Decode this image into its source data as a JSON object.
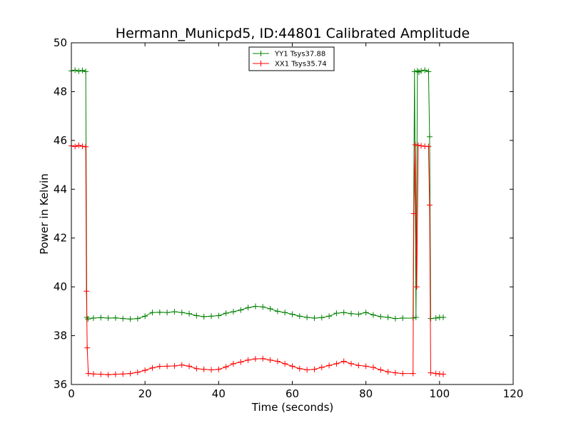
{
  "chart_data": {
    "type": "line",
    "title": "Hermann_Municpd5, ID:44801 Calibrated Amplitude",
    "xlabel": "Time (seconds)",
    "ylabel": "Power in Kelvin",
    "xlim": [
      0,
      120
    ],
    "ylim": [
      36,
      50
    ],
    "xticks": [
      0,
      20,
      40,
      60,
      80,
      100,
      120
    ],
    "yticks": [
      36,
      38,
      40,
      42,
      44,
      46,
      48,
      50
    ],
    "xtick_labels": [
      "0",
      "20",
      "40",
      "60",
      "80",
      "100",
      "120"
    ],
    "ytick_labels": [
      "36",
      "38",
      "40",
      "42",
      "44",
      "46",
      "48",
      "50"
    ],
    "grid": false,
    "legend_position": "top-center",
    "marker": "+",
    "series": [
      {
        "name": "YY1 Tsys37.88",
        "color": "#008000",
        "x": [
          0,
          1,
          2,
          3,
          3.9,
          4.2,
          4.5,
          6,
          8,
          10,
          12,
          14,
          16,
          18,
          20,
          22,
          24,
          26,
          28,
          30,
          32,
          34,
          36,
          38,
          40,
          42,
          44,
          46,
          48,
          50,
          52,
          54,
          56,
          58,
          60,
          62,
          64,
          66,
          68,
          70,
          72,
          74,
          76,
          78,
          80,
          82,
          84,
          86,
          88,
          90,
          92.8,
          93.2,
          93.6,
          94.0,
          94.4,
          95,
          96,
          97.0,
          97.3,
          97.6,
          99,
          100,
          101
        ],
        "values": [
          48.85,
          48.88,
          48.84,
          48.87,
          48.82,
          38.75,
          38.68,
          38.72,
          38.74,
          38.72,
          38.73,
          38.7,
          38.68,
          38.7,
          38.8,
          38.95,
          38.96,
          38.95,
          38.98,
          38.95,
          38.9,
          38.82,
          38.78,
          38.8,
          38.82,
          38.92,
          38.98,
          39.05,
          39.15,
          39.2,
          39.18,
          39.1,
          39.0,
          38.95,
          38.88,
          38.8,
          38.75,
          38.72,
          38.74,
          38.8,
          38.92,
          38.95,
          38.9,
          38.88,
          38.95,
          38.85,
          38.78,
          38.75,
          38.7,
          38.72,
          38.72,
          48.82,
          38.75,
          48.85,
          48.8,
          48.85,
          48.88,
          48.82,
          46.15,
          38.7,
          38.72,
          38.75,
          38.75
        ]
      },
      {
        "name": "XX1 Tsys35.74",
        "color": "#ff0000",
        "x": [
          0,
          1,
          2,
          3,
          3.9,
          4.1,
          4.3,
          4.6,
          6,
          8,
          10,
          12,
          14,
          16,
          18,
          20,
          22,
          24,
          26,
          28,
          30,
          32,
          34,
          36,
          38,
          40,
          42,
          44,
          46,
          48,
          50,
          52,
          54,
          56,
          58,
          60,
          62,
          64,
          66,
          68,
          70,
          72,
          74,
          76,
          78,
          80,
          82,
          84,
          86,
          88,
          90,
          92.8,
          93.0,
          93.4,
          93.8,
          94.2,
          95,
          96,
          97.0,
          97.3,
          97.6,
          99,
          100,
          101
        ],
        "values": [
          45.78,
          45.75,
          45.8,
          45.76,
          45.74,
          39.82,
          37.5,
          36.45,
          36.43,
          36.42,
          36.4,
          36.42,
          36.43,
          36.45,
          36.5,
          36.58,
          36.68,
          36.74,
          36.75,
          36.76,
          36.8,
          36.75,
          36.65,
          36.62,
          36.6,
          36.62,
          36.72,
          36.85,
          36.92,
          37.0,
          37.05,
          37.06,
          37.0,
          36.95,
          36.85,
          36.75,
          36.65,
          36.6,
          36.62,
          36.7,
          36.78,
          36.85,
          36.95,
          36.85,
          36.78,
          36.75,
          36.7,
          36.6,
          36.52,
          36.48,
          36.45,
          36.45,
          43.0,
          45.82,
          40.0,
          45.8,
          45.78,
          45.76,
          45.75,
          43.35,
          36.48,
          36.45,
          36.43,
          36.42
        ]
      }
    ]
  }
}
